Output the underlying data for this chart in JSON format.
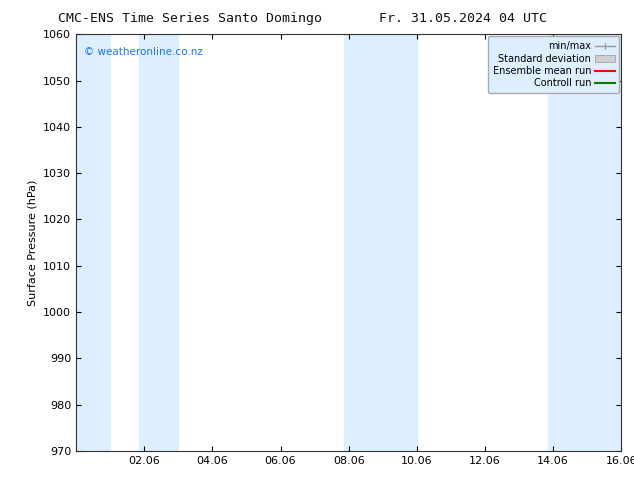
{
  "title_left": "CMC-ENS Time Series Santo Domingo",
  "title_right": "Fr. 31.05.2024 04 UTC",
  "ylabel": "Surface Pressure (hPa)",
  "ylim": [
    970,
    1060
  ],
  "yticks": [
    970,
    980,
    990,
    1000,
    1010,
    1020,
    1030,
    1040,
    1050,
    1060
  ],
  "xlim_start": 0,
  "xlim_end": 16,
  "xtick_labels": [
    "02.06",
    "04.06",
    "06.06",
    "08.06",
    "10.06",
    "12.06",
    "14.06",
    "16.06"
  ],
  "xtick_positions": [
    2,
    4,
    6,
    8,
    10,
    12,
    14,
    16
  ],
  "band_color": "#ddeeff",
  "band_ranges": [
    [
      0.0,
      1.0
    ],
    [
      1.85,
      3.0
    ],
    [
      7.85,
      10.0
    ],
    [
      13.85,
      16.0
    ]
  ],
  "watermark": "© weatheronline.co.nz",
  "watermark_color": "#1a75ff",
  "legend_labels": [
    "min/max",
    "Standard deviation",
    "Ensemble mean run",
    "Controll run"
  ],
  "legend_line_colors": [
    "#999999",
    "#cccccc",
    "#ff0000",
    "#008000"
  ],
  "legend_bg_color": "#ddeeff",
  "bg_color": "#ffffff",
  "plot_bg_color": "#ffffff",
  "font_size": 8,
  "title_font_size": 9.5
}
